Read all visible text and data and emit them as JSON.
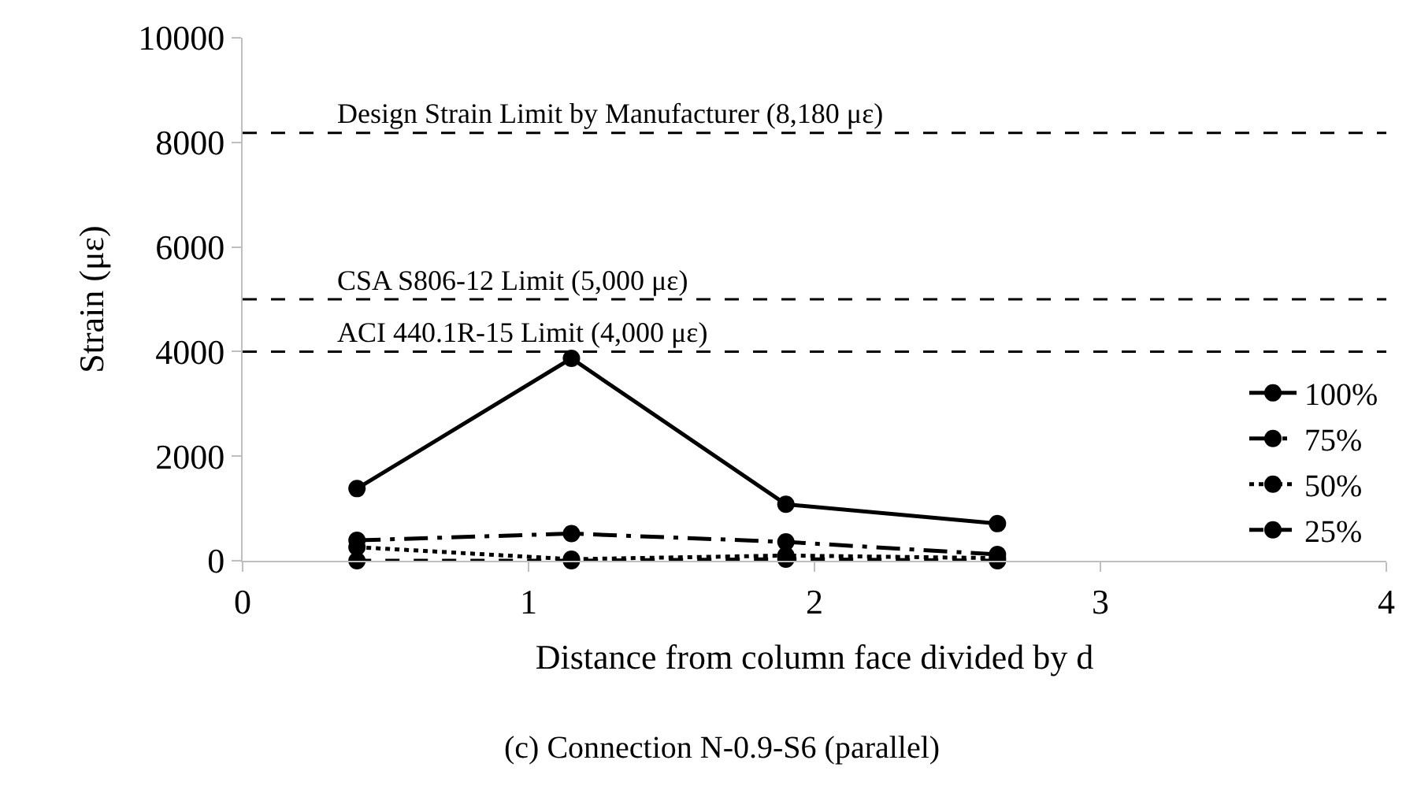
{
  "chart_data": {
    "type": "line",
    "xlabel": "Distance from column face divided by d",
    "ylabel": "Strain (με)",
    "x": [
      0.4,
      1.15,
      1.9,
      2.64
    ],
    "series": [
      {
        "name": "100%",
        "color": "#000000",
        "values": [
          1380,
          3870,
          1080,
          710
        ],
        "line_style": "solid"
      },
      {
        "name": "75%",
        "color": "#000000",
        "values": [
          390,
          520,
          360,
          120
        ],
        "line_style": "dashdot"
      },
      {
        "name": "50%",
        "color": "#000000",
        "values": [
          260,
          30,
          100,
          50
        ],
        "line_style": "dotted"
      },
      {
        "name": "25%",
        "color": "#000000",
        "values": [
          0,
          0,
          30,
          0
        ],
        "line_style": "dashed"
      }
    ],
    "xlim": [
      0,
      4
    ],
    "xticks": [
      0,
      1,
      2,
      3,
      4
    ],
    "ylim": [
      0,
      10000
    ],
    "yticks": [
      0,
      2000,
      4000,
      6000,
      8000,
      10000
    ],
    "ref_lines": [
      {
        "axis": "y",
        "value": 8180,
        "label": "Design Strain Limit by Manufacturer (8,180 με)",
        "color": "#000000",
        "line_style": "dashed"
      },
      {
        "axis": "y",
        "value": 5000,
        "label": "CSA S806-12 Limit (5,000 με)",
        "color": "#000000",
        "line_style": "dashed"
      },
      {
        "axis": "y",
        "value": 4000,
        "label": "ACI 440.1R-15 Limit (4,000 με)",
        "color": "#000000",
        "line_style": "dashed"
      }
    ],
    "annotations": [
      "(c) Connection N-0.9-S6 (parallel)"
    ],
    "marker": "circle",
    "legend": "right"
  }
}
